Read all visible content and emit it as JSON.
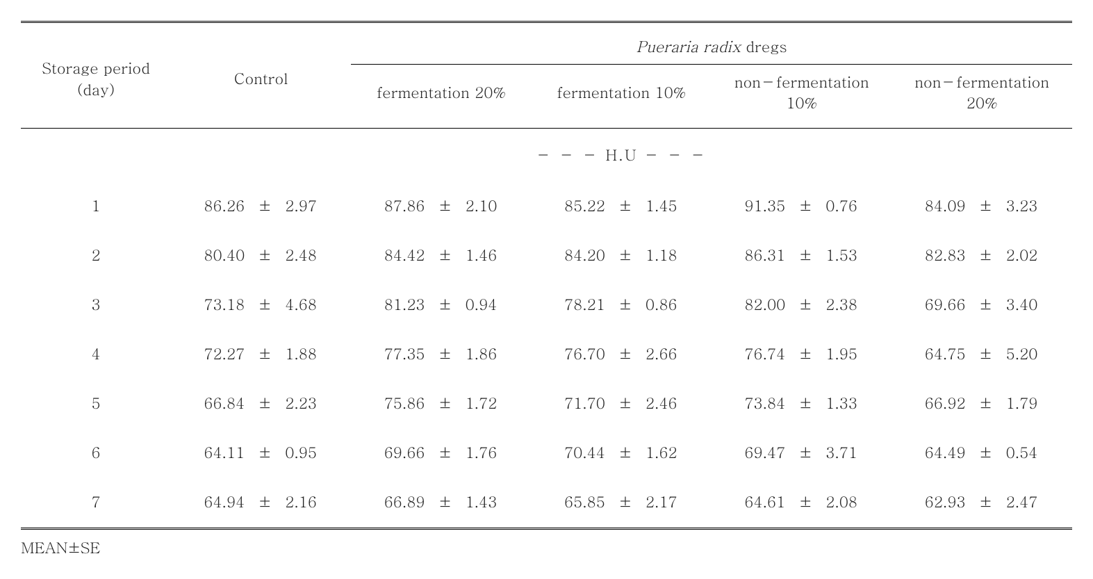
{
  "header": {
    "storage_period_top": "Storage period",
    "storage_period_bot": "(day)",
    "control": "Control",
    "super_header_italic": "Pueraria radix",
    "super_header_plain": " dregs",
    "col_f20": "fermentation 20%",
    "col_f10": "fermentation 10%",
    "col_nf10_top": "non－fermentation",
    "col_nf10_bot": "10%",
    "col_nf20_top": "non－fermentation",
    "col_nf20_bot": "20%"
  },
  "unit_row": "－   －   －    H.U   －   －   －",
  "pm": "±",
  "rows": [
    {
      "day": "1",
      "c_m": "86.26",
      "c_s": "2.97",
      "f20_m": "87.86",
      "f20_s": "2.10",
      "f10_m": "85.22",
      "f10_s": "1.45",
      "nf10_m": "91.35",
      "nf10_s": "0.76",
      "nf20_m": "84.09",
      "nf20_s": "3.23"
    },
    {
      "day": "2",
      "c_m": "80.40",
      "c_s": "2.48",
      "f20_m": "84.42",
      "f20_s": "1.46",
      "f10_m": "84.20",
      "f10_s": "1.18",
      "nf10_m": "86.31",
      "nf10_s": "1.53",
      "nf20_m": "82.83",
      "nf20_s": "2.02"
    },
    {
      "day": "3",
      "c_m": "73.18",
      "c_s": "4.68",
      "f20_m": "81.23",
      "f20_s": "0.94",
      "f10_m": "78.21",
      "f10_s": "0.86",
      "nf10_m": "82.00",
      "nf10_s": "2.38",
      "nf20_m": "69.66",
      "nf20_s": "3.40"
    },
    {
      "day": "4",
      "c_m": "72.27",
      "c_s": "1.88",
      "f20_m": "77.35",
      "f20_s": "1.86",
      "f10_m": "76.70",
      "f10_s": "2.66",
      "nf10_m": "76.74",
      "nf10_s": "1.95",
      "nf20_m": "64.75",
      "nf20_s": "5.20"
    },
    {
      "day": "5",
      "c_m": "66.84",
      "c_s": "2.23",
      "f20_m": "75.86",
      "f20_s": "1.72",
      "f10_m": "71.70",
      "f10_s": "2.46",
      "nf10_m": "73.84",
      "nf10_s": "1.33",
      "nf20_m": "66.92",
      "nf20_s": "1.79"
    },
    {
      "day": "6",
      "c_m": "64.11",
      "c_s": "0.95",
      "f20_m": "69.66",
      "f20_s": "1.76",
      "f10_m": "70.44",
      "f10_s": "1.62",
      "nf10_m": "69.47",
      "nf10_s": "3.71",
      "nf20_m": "64.49",
      "nf20_s": "0.54"
    },
    {
      "day": "7",
      "c_m": "64.94",
      "c_s": "2.16",
      "f20_m": "66.89",
      "f20_s": "1.43",
      "f10_m": "65.85",
      "f10_s": "2.17",
      "nf10_m": "64.61",
      "nf10_s": "2.08",
      "nf20_m": "62.93",
      "nf20_s": "2.47"
    }
  ],
  "footnote": "MEAN±SE"
}
